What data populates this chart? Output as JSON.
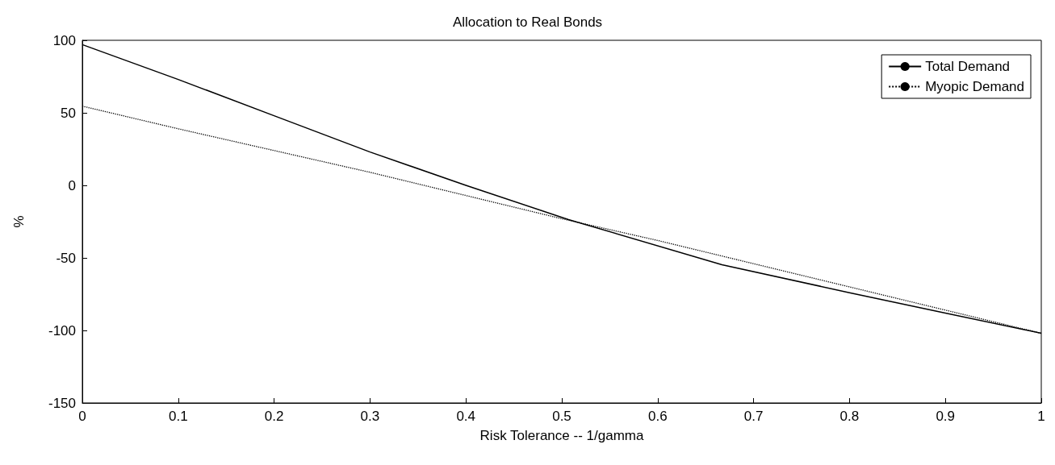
{
  "chart_data": {
    "type": "line",
    "title": "Allocation to Real Bonds",
    "xlabel": "Risk Tolerance -- 1/gamma",
    "ylabel": "%",
    "xlim": [
      0,
      1
    ],
    "xticks": [
      0,
      0.1,
      0.2,
      0.3,
      0.4,
      0.5,
      0.6,
      0.7,
      0.8,
      0.9,
      1
    ],
    "ylim": [
      -150,
      100
    ],
    "yticks": [
      -150,
      -100,
      -50,
      0,
      50,
      100
    ],
    "grid": false,
    "legend": "top right",
    "marker": "none",
    "series": [
      {
        "name": "Total Demand",
        "color": "#000000",
        "line_style": "solid",
        "x": [
          0,
          0.1,
          0.2,
          0.3,
          0.4,
          0.507,
          0.667,
          0.8,
          0.9,
          1
        ],
        "values": [
          97,
          73,
          48,
          23,
          0,
          -23.6,
          -54.7,
          -74,
          -88,
          -102
        ]
      },
      {
        "name": "Myopic Demand",
        "color": "#000000",
        "line_style": "dotted",
        "x": [
          0,
          0.1,
          0.2,
          0.3,
          0.4,
          0.5,
          0.6,
          0.7,
          0.8,
          0.9,
          1
        ],
        "values": [
          54.6,
          39,
          24,
          9,
          -7,
          -23,
          -38,
          -54,
          -70,
          -86,
          -102
        ]
      }
    ]
  }
}
